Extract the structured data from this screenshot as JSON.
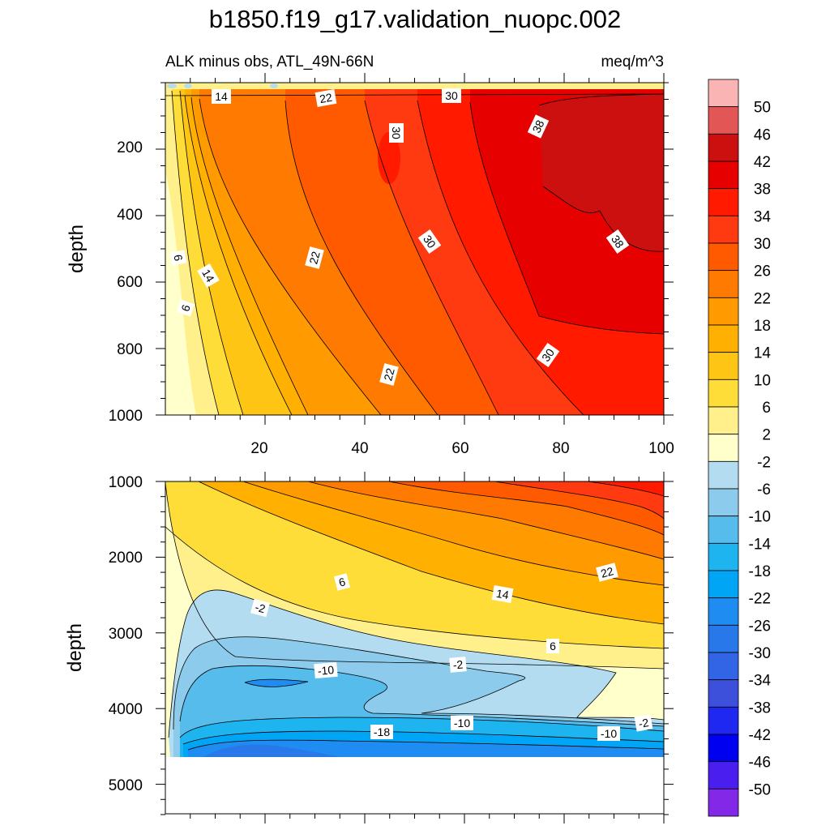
{
  "title": "b1850.f19_g17.validation_nuopc.002",
  "chart_data": {
    "type": "heatmap",
    "subtitle_left": "ALK minus obs, ATL_49N-66N",
    "subtitle_right": "meq/m^3",
    "ylabel": "depth",
    "x_ticks": [
      "20",
      "40",
      "60",
      "80",
      "100"
    ],
    "xlim": [
      0,
      100
    ],
    "colorbar": {
      "labels": [
        "50",
        "46",
        "42",
        "38",
        "34",
        "30",
        "26",
        "22",
        "18",
        "14",
        "10",
        "6",
        "2",
        "-2",
        "-6",
        "-10",
        "-14",
        "-18",
        "-22",
        "-26",
        "-30",
        "-34",
        "-38",
        "-42",
        "-46",
        "-50"
      ],
      "colors": [
        "#fbb4b4",
        "#e25656",
        "#cc1010",
        "#e60000",
        "#ff1a00",
        "#ff3a10",
        "#ff5a00",
        "#ff7a00",
        "#ff9a00",
        "#ffb000",
        "#ffc514",
        "#ffdd38",
        "#fff08c",
        "#ffffcc",
        "#b4dcf0",
        "#8ccbeb",
        "#55bcec",
        "#1eb4f0",
        "#00a5f5",
        "#1e8cf0",
        "#2878ea",
        "#3264e6",
        "#3c50dc",
        "#1e28f0",
        "#0000f0",
        "#4b1ef0",
        "#8228e6"
      ]
    },
    "panels": [
      {
        "name": "upper",
        "ylim": [
          0,
          1000
        ],
        "y_ticks": [
          "200",
          "400",
          "600",
          "800",
          "1000"
        ],
        "contour_labels": [
          "14",
          "22",
          "30",
          "30",
          "38",
          "6",
          "14",
          "22",
          "30",
          "38",
          "6",
          "22",
          "30"
        ]
      },
      {
        "name": "lower",
        "ylim": [
          1000,
          5400
        ],
        "y_ticks": [
          "1000",
          "2000",
          "3000",
          "4000",
          "5000"
        ],
        "contour_labels": [
          "6",
          "22",
          "14",
          "-2",
          "6",
          "-10",
          "-2",
          "-10",
          "-18",
          "-10",
          "-2"
        ]
      }
    ]
  }
}
